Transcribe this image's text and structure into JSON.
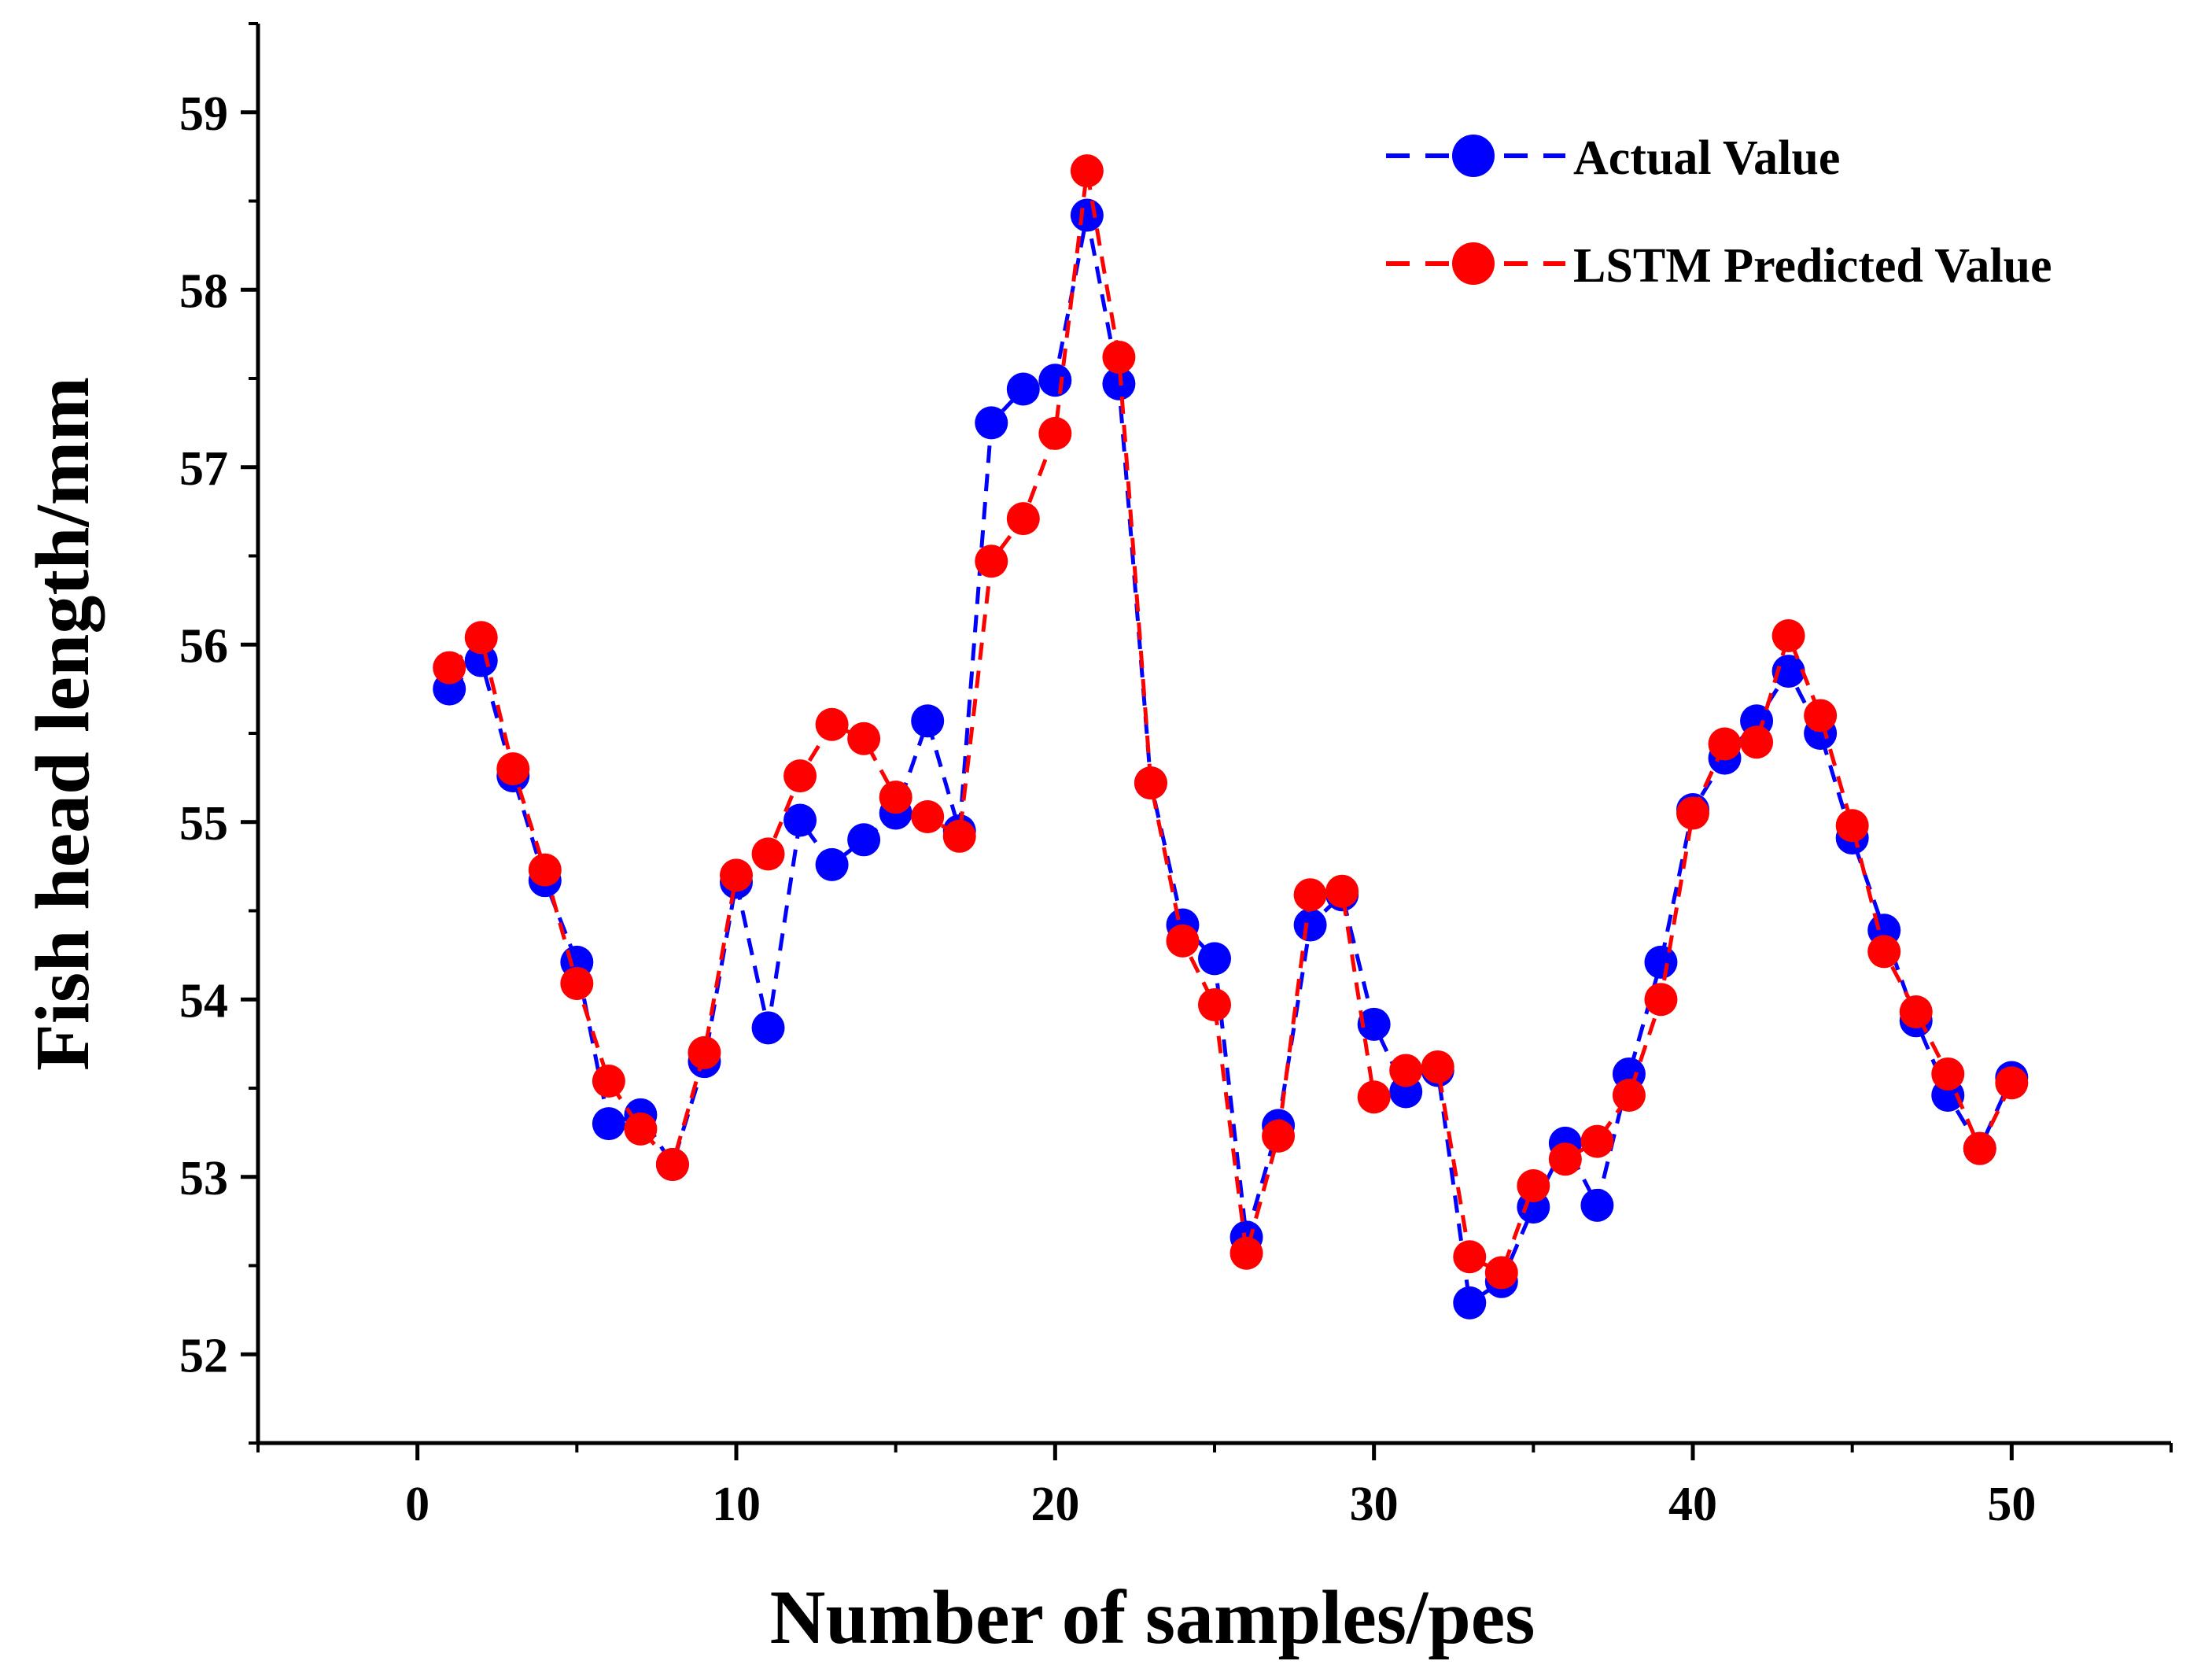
{
  "chart_data": {
    "type": "line",
    "xlabel": "Number of samples/pes",
    "ylabel": "Fish head length/mm",
    "xlim": [
      -5,
      55
    ],
    "ylim": [
      51.5,
      59.5
    ],
    "xticks": [
      0,
      10,
      20,
      30,
      40,
      50
    ],
    "yticks": [
      52,
      53,
      54,
      55,
      56,
      57,
      58,
      59
    ],
    "grid": false,
    "legend_position": "top-right",
    "x": [
      1,
      2,
      3,
      4,
      5,
      6,
      7,
      8,
      9,
      10,
      11,
      12,
      13,
      14,
      15,
      16,
      17,
      18,
      19,
      20,
      21,
      22,
      23,
      24,
      25,
      26,
      27,
      28,
      29,
      30,
      31,
      32,
      33,
      34,
      35,
      36,
      37,
      38,
      39,
      40,
      41,
      42,
      43,
      44,
      45,
      46,
      47,
      48,
      49,
      50
    ],
    "series": [
      {
        "name": "Actual Value",
        "color": "#0000ff",
        "values": [
          55.75,
          55.91,
          55.26,
          54.67,
          54.21,
          53.3,
          53.35,
          53.07,
          53.65,
          54.66,
          53.84,
          55.01,
          54.76,
          54.9,
          55.05,
          55.57,
          54.95,
          57.25,
          57.44,
          57.49,
          58.42,
          57.47,
          55.22,
          54.42,
          54.23,
          52.66,
          53.29,
          54.42,
          54.59,
          53.86,
          53.48,
          53.6,
          52.29,
          52.41,
          52.83,
          53.19,
          52.84,
          53.58,
          54.21,
          55.07,
          55.36,
          55.57,
          55.85,
          55.5,
          54.91,
          54.39,
          53.88,
          53.46,
          53.16,
          53.56
        ]
      },
      {
        "name": "LSTM Predicted Value",
        "color": "#ff0000",
        "values": [
          55.87,
          56.04,
          55.3,
          54.73,
          54.09,
          53.54,
          53.27,
          53.07,
          53.7,
          54.7,
          54.82,
          55.26,
          55.55,
          55.47,
          55.14,
          55.03,
          54.92,
          56.47,
          56.71,
          57.19,
          58.67,
          57.62,
          55.22,
          54.33,
          53.97,
          52.57,
          53.23,
          54.59,
          54.61,
          53.45,
          53.6,
          53.62,
          52.55,
          52.46,
          52.95,
          53.1,
          53.2,
          53.46,
          54.0,
          55.05,
          55.44,
          55.45,
          56.05,
          55.6,
          54.98,
          54.27,
          53.93,
          53.58,
          53.16,
          53.53
        ]
      }
    ]
  }
}
